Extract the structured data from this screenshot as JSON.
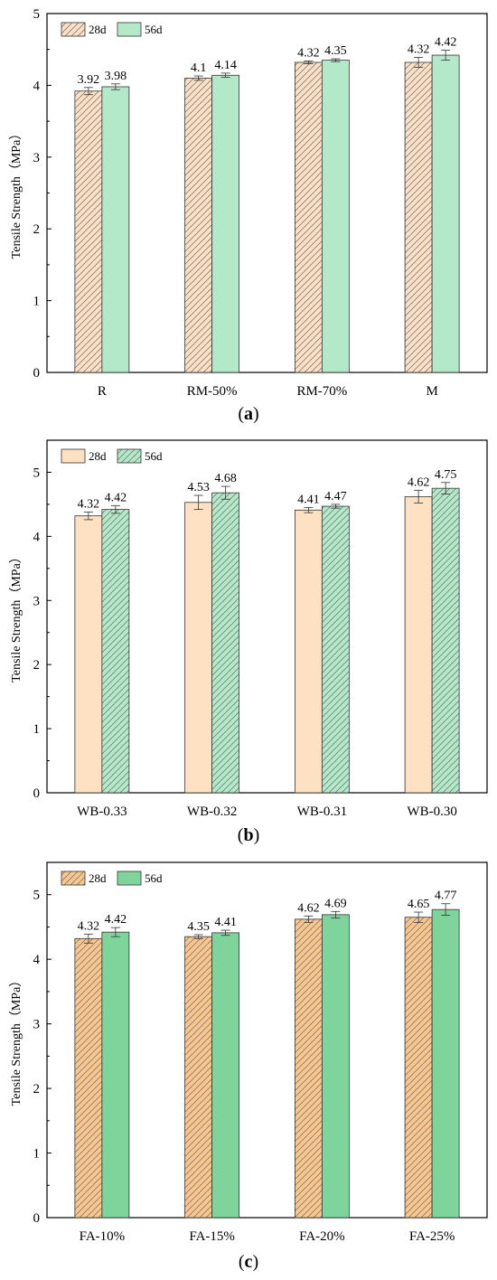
{
  "chart_data": [
    {
      "type": "bar",
      "caption_open": "(",
      "caption_letter": "a",
      "caption_close": ")",
      "ylabel": "Tensile Strength（MPa）",
      "ylim": [
        0,
        5
      ],
      "yticks": [
        0,
        1,
        2,
        3,
        4,
        5
      ],
      "categories": [
        "R",
        "RM-50%",
        "RM-70%",
        "M"
      ],
      "legend_position": "top-left",
      "series": [
        {
          "name": "28d",
          "values": [
            3.92,
            4.1,
            4.32,
            4.32
          ],
          "labels": [
            "3.92",
            "4.1",
            "4.32",
            "4.32"
          ],
          "errors": [
            0.05,
            0.03,
            0.02,
            0.07
          ],
          "color": "#fce0c6",
          "hatched": true
        },
        {
          "name": "56d",
          "values": [
            3.98,
            4.14,
            4.35,
            4.42
          ],
          "labels": [
            "3.98",
            "4.14",
            "4.35",
            "4.42"
          ],
          "errors": [
            0.04,
            0.03,
            0.02,
            0.07
          ],
          "color": "#b3e9c8",
          "hatched": false
        }
      ]
    },
    {
      "type": "bar",
      "caption_open": "(",
      "caption_letter": "b",
      "caption_close": ")",
      "ylabel": "Tensile Strength（MPa）",
      "ylim": [
        0,
        5.5
      ],
      "yticks": [
        0,
        1,
        2,
        3,
        4,
        5
      ],
      "categories": [
        "WB-0.33",
        "WB-0.32",
        "WB-0.31",
        "WB-0.30"
      ],
      "legend_position": "top-left",
      "series": [
        {
          "name": "28d",
          "values": [
            4.32,
            4.53,
            4.41,
            4.62
          ],
          "labels": [
            "4.32",
            "4.53",
            "4.41",
            "4.62"
          ],
          "errors": [
            0.06,
            0.11,
            0.04,
            0.1
          ],
          "color": "#fee0c3",
          "hatched": false
        },
        {
          "name": "56d",
          "values": [
            4.42,
            4.68,
            4.47,
            4.75
          ],
          "labels": [
            "4.42",
            "4.68",
            "4.47",
            "4.75"
          ],
          "errors": [
            0.06,
            0.1,
            0.03,
            0.09
          ],
          "color": "#b3e9c8",
          "hatched": true
        }
      ]
    },
    {
      "type": "bar",
      "caption_open": "(",
      "caption_letter": "c",
      "caption_close": ")",
      "ylabel": "Tensile Strength（MPa）",
      "ylim": [
        0,
        5.5
      ],
      "yticks": [
        0,
        1,
        2,
        3,
        4,
        5
      ],
      "categories": [
        "FA-10%",
        "FA-15%",
        "FA-20%",
        "FA-25%"
      ],
      "legend_position": "top-left",
      "series": [
        {
          "name": "28d",
          "values": [
            4.32,
            4.35,
            4.62,
            4.65
          ],
          "labels": [
            "4.32",
            "4.35",
            "4.62",
            "4.65"
          ],
          "errors": [
            0.07,
            0.03,
            0.05,
            0.08
          ],
          "color": "#f9c68e",
          "hatched": true
        },
        {
          "name": "56d",
          "values": [
            4.42,
            4.41,
            4.69,
            4.77
          ],
          "labels": [
            "4.42",
            "4.41",
            "4.69",
            "4.77"
          ],
          "errors": [
            0.07,
            0.04,
            0.05,
            0.09
          ],
          "color": "#7fd49c",
          "hatched": false
        }
      ]
    }
  ]
}
